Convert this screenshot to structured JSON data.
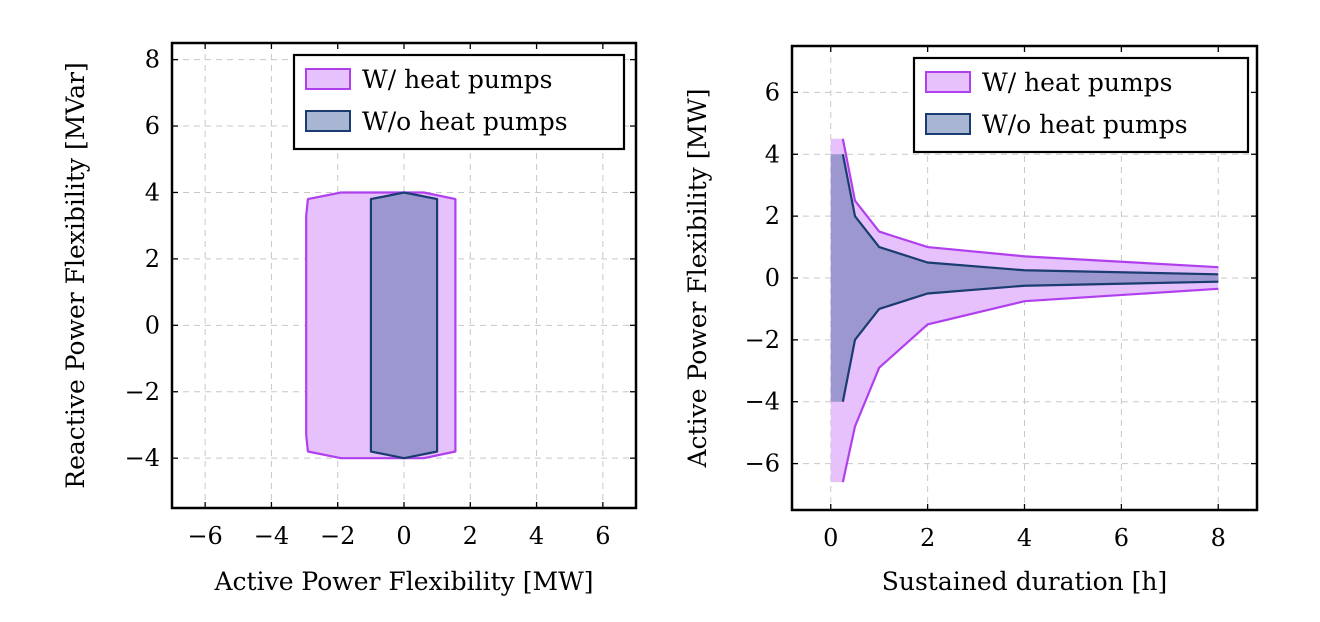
{
  "colors": {
    "with_fill": "#e6c1fb",
    "with_stroke": "#b040ee",
    "without_fill": "#9c98cf",
    "without_stroke": "#1a3c70",
    "legend_without_fill": "#a9b6d3"
  },
  "chart_data": [
    {
      "type": "area",
      "xlabel": "Active Power Flexibility [MW]",
      "ylabel": "Reactive Power Flexibility [MVar]",
      "xlim": [
        -7,
        7
      ],
      "ylim": [
        -5.5,
        8.5
      ],
      "xticks": [
        -6,
        -4,
        -2,
        0,
        2,
        4,
        6
      ],
      "yticks": [
        -4,
        -2,
        0,
        2,
        4,
        6,
        8
      ],
      "grid": true,
      "legend_position": "top-right",
      "series": [
        {
          "name": "W/ heat pumps",
          "polygon": [
            [
              -2.9,
              3.8
            ],
            [
              -1.9,
              4.0
            ],
            [
              0.6,
              4.0
            ],
            [
              1.55,
              3.8
            ],
            [
              1.55,
              -3.8
            ],
            [
              0.6,
              -4.0
            ],
            [
              -1.9,
              -4.0
            ],
            [
              -2.9,
              -3.8
            ],
            [
              -2.95,
              -3.3
            ],
            [
              -2.95,
              3.3
            ]
          ]
        },
        {
          "name": "W/o heat pumps",
          "polygon": [
            [
              -1.0,
              3.8
            ],
            [
              0.0,
              4.0
            ],
            [
              1.0,
              3.8
            ],
            [
              1.0,
              -3.8
            ],
            [
              0.0,
              -4.0
            ],
            [
              -1.0,
              -3.8
            ]
          ]
        }
      ]
    },
    {
      "type": "area",
      "xlabel": "Sustained duration [h]",
      "ylabel": "Active Power Flexibility [MW]",
      "xlim": [
        -0.8,
        8.8
      ],
      "ylim": [
        -7.5,
        7.5
      ],
      "xticks": [
        0,
        2,
        4,
        6,
        8
      ],
      "yticks": [
        -6,
        -4,
        -2,
        0,
        2,
        4,
        6
      ],
      "grid": true,
      "legend_position": "top-right",
      "series": [
        {
          "name": "W/ heat pumps",
          "x": [
            0.25,
            0.5,
            1,
            2,
            4,
            8
          ],
          "upper": [
            4.5,
            2.5,
            1.5,
            1.0,
            0.7,
            0.35
          ],
          "lower": [
            -6.6,
            -4.8,
            -2.9,
            -1.5,
            -0.75,
            -0.35
          ],
          "edge_upper": 4.5,
          "edge_lower": -6.6
        },
        {
          "name": "W/o heat pumps",
          "x": [
            0.25,
            0.5,
            1,
            2,
            4,
            8
          ],
          "upper": [
            4.0,
            2.0,
            1.0,
            0.5,
            0.25,
            0.12
          ],
          "lower": [
            -4.0,
            -2.0,
            -1.0,
            -0.5,
            -0.25,
            -0.12
          ],
          "edge_upper": 4.0,
          "edge_lower": -4.0
        }
      ]
    }
  ]
}
